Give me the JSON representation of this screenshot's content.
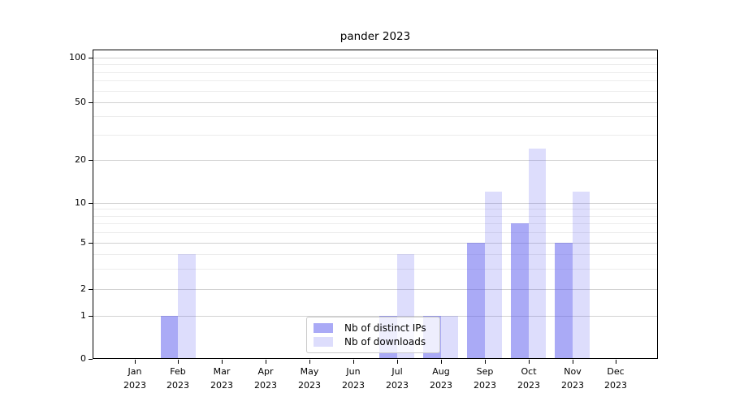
{
  "chart_data": {
    "type": "bar",
    "title": "pander 2023",
    "x_categories": [
      "Jan",
      "Feb",
      "Mar",
      "Apr",
      "May",
      "Jun",
      "Jul",
      "Aug",
      "Sep",
      "Oct",
      "Nov",
      "Dec"
    ],
    "x_year": "2023",
    "series": [
      {
        "name": "Nb of distinct IPs",
        "color": "rgba(86,86,238,0.5)",
        "values": [
          0,
          1,
          0,
          0,
          0,
          0,
          1,
          1,
          5,
          7,
          5,
          0
        ]
      },
      {
        "name": "Nb of downloads",
        "color": "rgba(86,86,238,0.2)",
        "values": [
          0,
          4,
          0,
          0,
          0,
          0,
          4,
          1,
          12,
          24,
          12,
          0
        ]
      }
    ],
    "y_ticks": [
      0,
      1,
      2,
      5,
      10,
      20,
      50,
      100
    ],
    "y_minor_gridlines": [
      3,
      4,
      6,
      7,
      8,
      9,
      30,
      40,
      60,
      70,
      80,
      90
    ],
    "y_scale": "log (linear below 1)",
    "ylim": [
      0,
      110
    ],
    "grid": true,
    "legend_position": "lower center"
  }
}
